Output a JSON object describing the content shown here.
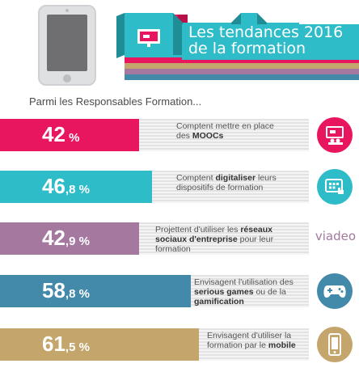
{
  "header": {
    "title_line1": "Les tendances 2016",
    "title_line2": "de la formation"
  },
  "subtitle": "Parmi les Responsables Formation...",
  "colors": {
    "pink": "#e8155f",
    "teal": "#2fbcc9",
    "purple": "#a4789f",
    "blue": "#4389a9",
    "gold": "#c4a56c"
  },
  "stats": [
    {
      "pct_int": "42",
      "pct_dec": " %",
      "text_pre": "Comptent mettre en place des ",
      "text_bold": "MOOCs",
      "text_post": "",
      "icon": "presentation-screen-icon"
    },
    {
      "pct_int": "46",
      "pct_dec": ",8 %",
      "text_pre": "Comptent ",
      "text_bold": "digitaliser",
      "text_post": " leurs dispositifs de formation",
      "icon": "touch-tablet-icon"
    },
    {
      "pct_int": "42",
      "pct_dec": ",9 %",
      "text_pre": "Projettent d'utiliser les ",
      "text_bold": "réseaux sociaux d'entreprise",
      "text_post": " pour leur formation",
      "icon": "viadeo-logo",
      "logo_text": "viadeo"
    },
    {
      "pct_int": "58",
      "pct_dec": ",8 %",
      "text_pre": "Envisagent l'utilisation des ",
      "text_bold": "serious games",
      "text_post": " ou de la ",
      "text_bold2": "gamification",
      "icon": "gamepad-icon"
    },
    {
      "pct_int": "61",
      "pct_dec": ",5 %",
      "text_pre": "Envisagent d'utiliser la formation par le ",
      "text_bold": "mobile",
      "text_post": "",
      "icon": "smartphone-icon"
    }
  ]
}
